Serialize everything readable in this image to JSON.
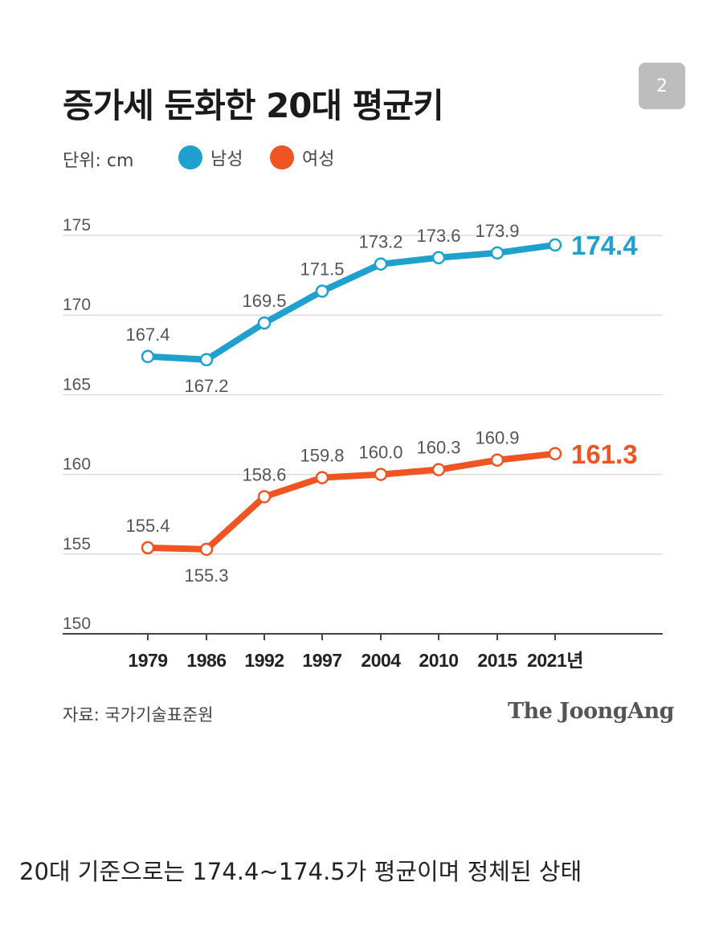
{
  "badge": {
    "page_number": "2"
  },
  "title": "증가세 둔화한 20대 평균키",
  "unit_label": "단위: cm",
  "legend": [
    {
      "name": "남성",
      "color": "#1fa0cf"
    },
    {
      "name": "여성",
      "color": "#ee5523"
    }
  ],
  "source_note": "자료: 국가기술표준원",
  "brand": "The JoongAng",
  "caption": "20대 기준으로는 174.4~174.5가 평균이며 정체된 상태",
  "chart_data": {
    "type": "line",
    "title": "증가세 둔화한 20대 평균키",
    "ylabel": "단위: cm",
    "ylim": [
      150,
      175
    ],
    "yticks": [
      "175",
      "170",
      "165",
      "160",
      "155",
      "150"
    ],
    "categories": [
      "1979",
      "1986",
      "1992",
      "1997",
      "2004",
      "2010",
      "2015",
      "2021년"
    ],
    "grid": true,
    "legend_position": "top-left",
    "series": [
      {
        "name": "남성",
        "color": "#1fa0cf",
        "values": [
          167.4,
          167.2,
          169.5,
          171.5,
          173.2,
          173.6,
          173.9,
          174.4
        ],
        "labels": [
          "167.4",
          "167.2",
          "169.5",
          "171.5",
          "173.2",
          "173.6",
          "173.9",
          "174.4"
        ]
      },
      {
        "name": "여성",
        "color": "#ee5523",
        "values": [
          155.4,
          155.3,
          158.6,
          159.8,
          160.0,
          160.3,
          160.9,
          161.3
        ],
        "labels": [
          "155.4",
          "155.3",
          "158.6",
          "159.8",
          "160.0",
          "160.3",
          "160.9",
          "161.3"
        ]
      }
    ]
  }
}
